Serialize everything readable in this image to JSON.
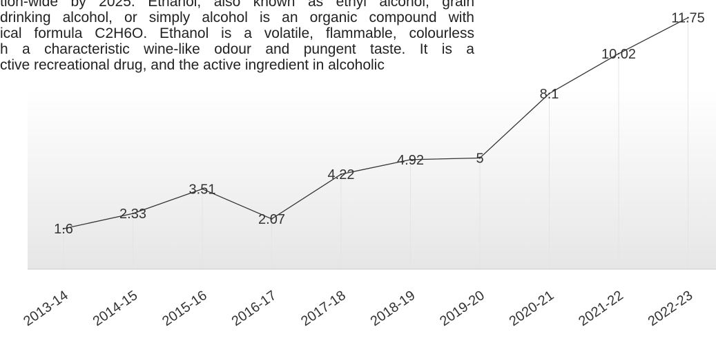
{
  "article": {
    "lines": [
      "tion-wide by 2025. Ethanol, also known as ethyl alcohol, grain",
      "drinking alcohol, or simply alcohol is an organic compound with",
      "ical formula C2H6O. Ethanol is a volatile, flammable, colourless",
      "h a characteristic wine-like odour and pungent taste. It is a",
      "ctive recreational drug, and the active ingredient in alcoholic"
    ]
  },
  "chart_data": {
    "type": "line",
    "title": "",
    "xlabel": "",
    "ylabel": "",
    "categories": [
      "2013-14",
      "2014-15",
      "2015-16",
      "2016-17",
      "2017-18",
      "2018-19",
      "2019-20",
      "2020-21",
      "2021-22",
      "2022-23"
    ],
    "series": [
      {
        "values": [
          1.6,
          2.33,
          3.51,
          2.07,
          4.22,
          4.92,
          5,
          8.1,
          10.02,
          11.75
        ],
        "labels": [
          "1.6",
          "2.33",
          "3.51",
          "2.07",
          "4.22",
          "4.92",
          "5",
          "8.1",
          "10.02",
          "11.75"
        ],
        "color": "#333333"
      }
    ],
    "ylim": [
      -0.35,
      12.6
    ],
    "grid": "vertical",
    "legend": "none",
    "colors": {
      "plot_background_top": "#ffffff",
      "plot_background_bottom": "#e6e6e6",
      "gridline": "#e4e4e4",
      "axis_line": "#cccccc"
    }
  }
}
